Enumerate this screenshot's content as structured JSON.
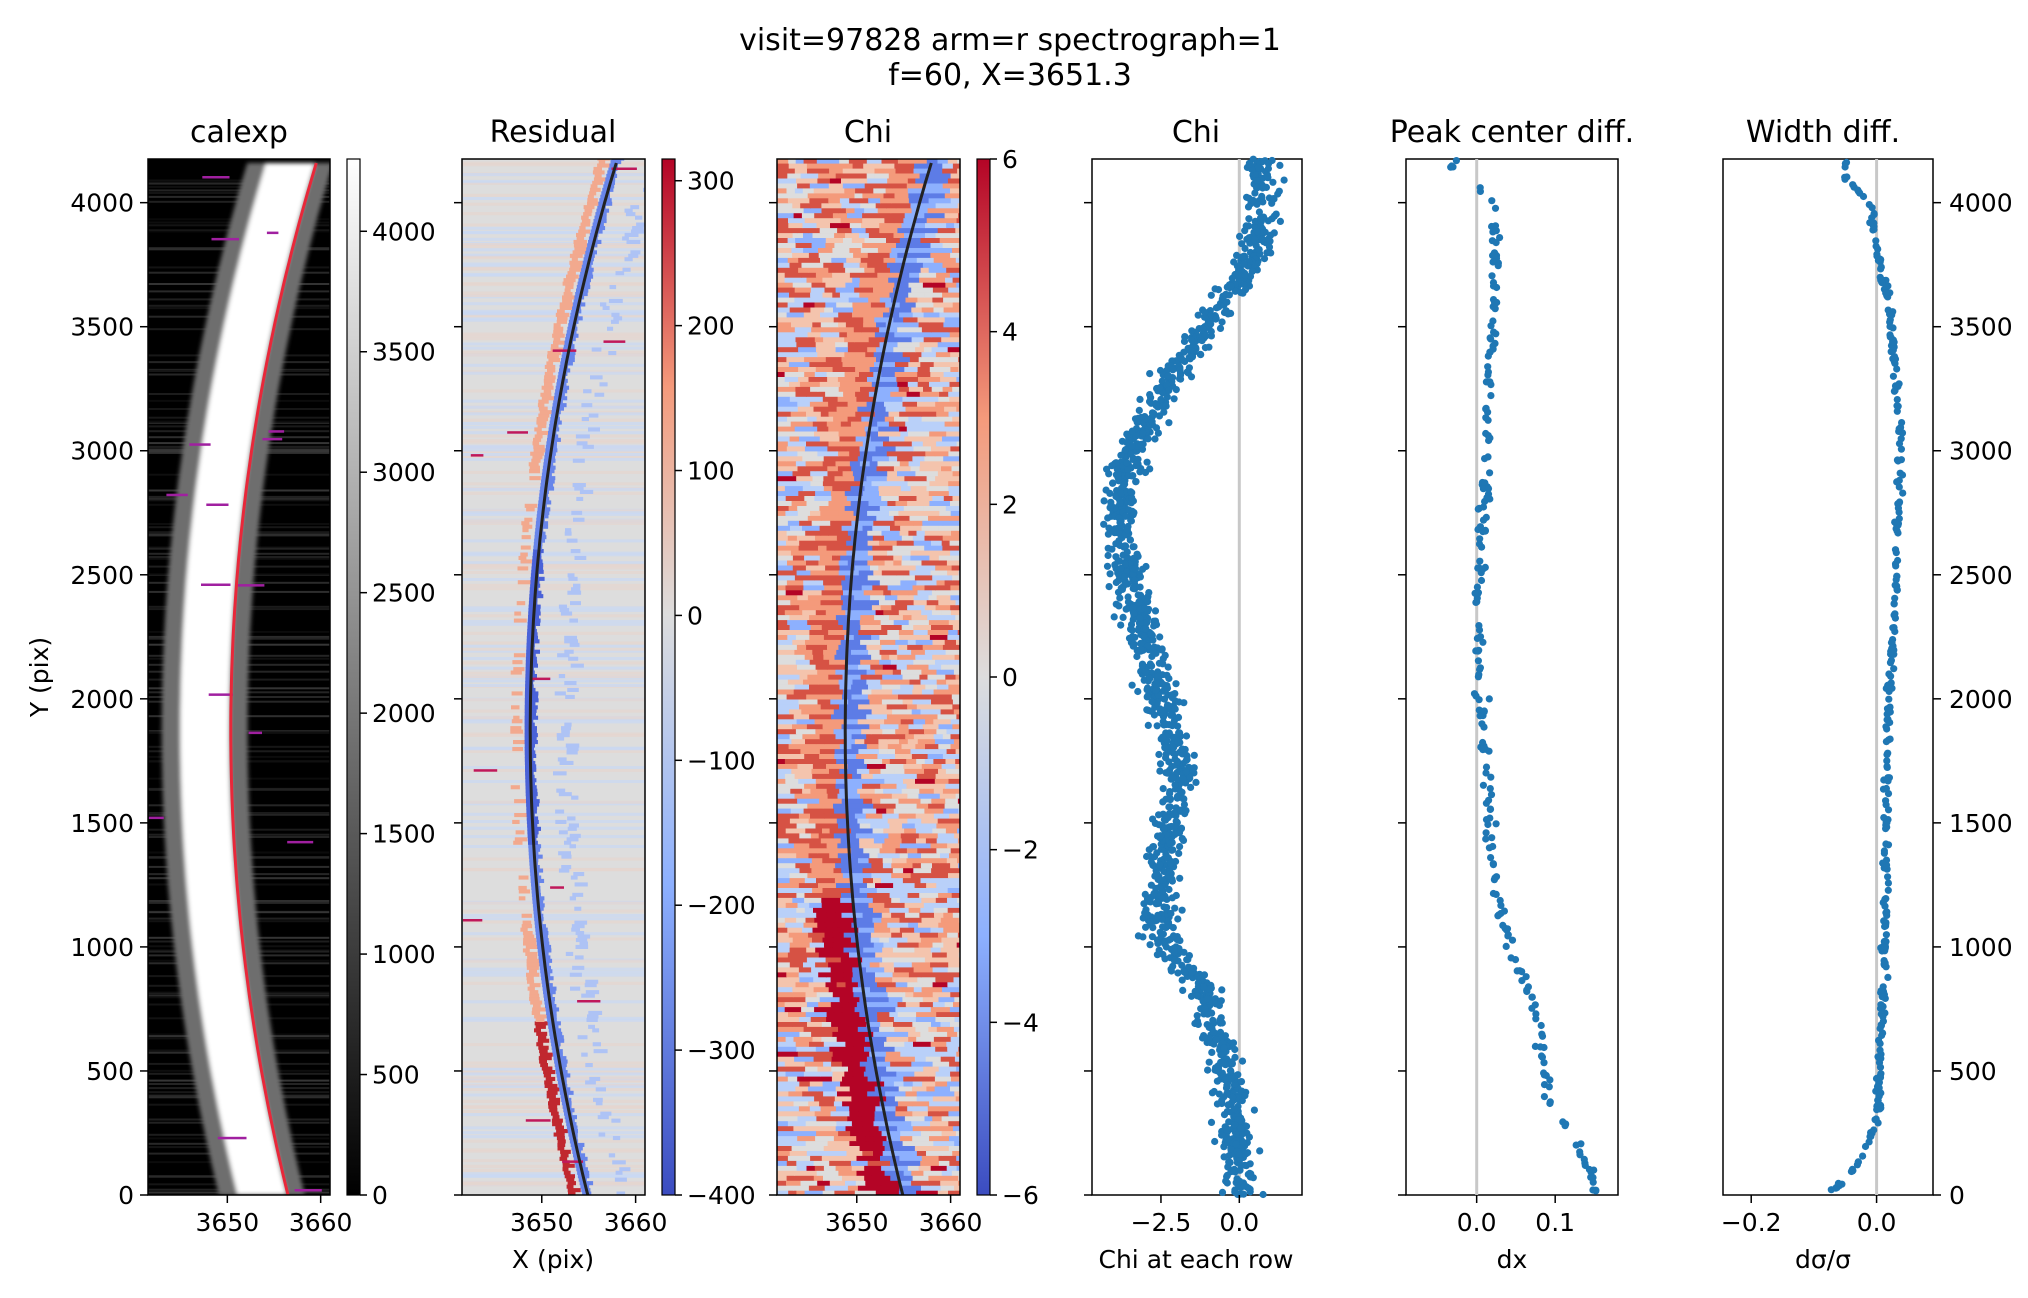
{
  "chart_data": {
    "suptitle_lines": [
      "visit=97828 arm=r spectrograph=1",
      "f=60, X=3651.3"
    ],
    "panels": [
      {
        "type": "heatmap",
        "title": "calexp",
        "xlabel": "",
        "ylabel": "Y (pix)",
        "xlim": [
          3641.5,
          3661
        ],
        "ylim": [
          0,
          4176
        ],
        "xticks": [
          "3650",
          "3660"
        ],
        "yticks": [
          "0",
          "500",
          "1000",
          "1500",
          "2000",
          "2500",
          "3000",
          "3500",
          "4000"
        ],
        "colormap": "gray",
        "colorbar": {
          "vmin": 0,
          "vmax": 4300,
          "ticks": [
            "0",
            "500",
            "1000",
            "1500",
            "2000",
            "2500",
            "3000",
            "3500",
            "4000"
          ]
        },
        "trace_color": "#e8283a"
      },
      {
        "type": "heatmap",
        "title": "Residual",
        "xlabel": "X (pix)",
        "xlim": [
          3641.5,
          3661
        ],
        "ylim": [
          0,
          4176
        ],
        "xticks": [
          "3650",
          "3660"
        ],
        "colormap": "coolwarm",
        "colorbar": {
          "vmin": -400,
          "vmax": 315,
          "ticks": [
            "300",
            "200",
            "100",
            "0",
            "−100",
            "−200",
            "−300",
            "−400"
          ]
        },
        "trace_color": "#222222"
      },
      {
        "type": "heatmap",
        "title": "Chi",
        "xlabel": "",
        "xlim": [
          3641.5,
          3661
        ],
        "ylim": [
          0,
          4176
        ],
        "xticks": [
          "3650",
          "3660"
        ],
        "colormap": "coolwarm",
        "colorbar": {
          "vmin": -6,
          "vmax": 6,
          "ticks": [
            "6",
            "4",
            "2",
            "0",
            "−2",
            "−4",
            "−6"
          ]
        },
        "trace_color": "#222222"
      },
      {
        "type": "scatter",
        "title": "Chi",
        "xlabel": "Chi at each row",
        "xlim": [
          -4.7,
          2.0
        ],
        "ylim": [
          0,
          4176
        ],
        "xticks": [
          "−2.5",
          "0.0"
        ],
        "reference_x": 0.0,
        "profile": [
          [
            0,
            0.1
          ],
          [
            200,
            -0.1
          ],
          [
            400,
            -0.2
          ],
          [
            600,
            -0.6
          ],
          [
            800,
            -1.0
          ],
          [
            1000,
            -2.4
          ],
          [
            1200,
            -2.6
          ],
          [
            1500,
            -2.2
          ],
          [
            1700,
            -1.8
          ],
          [
            2000,
            -2.6
          ],
          [
            2200,
            -2.9
          ],
          [
            2500,
            -3.6
          ],
          [
            2800,
            -3.8
          ],
          [
            3000,
            -3.5
          ],
          [
            3200,
            -2.6
          ],
          [
            3400,
            -1.6
          ],
          [
            3600,
            -0.4
          ],
          [
            3800,
            0.4
          ],
          [
            4000,
            0.9
          ],
          [
            4176,
            0.6
          ]
        ]
      },
      {
        "type": "scatter",
        "title": "Peak center diff.",
        "xlabel": "dx",
        "xlim": [
          -0.09,
          0.18
        ],
        "ylim": [
          0,
          4176
        ],
        "xticks": [
          "0.0",
          "0.1"
        ],
        "reference_x": 0.0,
        "profile": [
          [
            60,
            0.15
          ],
          [
            200,
            0.13
          ],
          [
            400,
            0.09
          ],
          [
            600,
            0.085
          ],
          [
            800,
            0.07
          ],
          [
            1000,
            0.04
          ],
          [
            1200,
            0.025
          ],
          [
            1500,
            0.015
          ],
          [
            1800,
            0.01
          ],
          [
            2000,
            0.005
          ],
          [
            2300,
            0.0
          ],
          [
            2600,
            0.005
          ],
          [
            2800,
            0.01
          ],
          [
            3000,
            0.012
          ],
          [
            3200,
            0.015
          ],
          [
            3500,
            0.02
          ],
          [
            3800,
            0.025
          ],
          [
            4000,
            0.02
          ],
          [
            4150,
            -0.03
          ]
        ]
      },
      {
        "type": "scatter",
        "title": "Width diff.",
        "xlabel": "dσ/σ",
        "xlim": [
          -0.245,
          0.09
        ],
        "ylim": [
          0,
          4176
        ],
        "xticks": [
          "−0.2",
          "0.0"
        ],
        "yticks": [
          "0",
          "500",
          "1000",
          "1500",
          "2000",
          "2500",
          "3000",
          "3500",
          "4000"
        ],
        "reference_x": 0.0,
        "profile": [
          [
            20,
            -0.07
          ],
          [
            120,
            -0.03
          ],
          [
            300,
            0.0
          ],
          [
            500,
            0.005
          ],
          [
            800,
            0.01
          ],
          [
            1200,
            0.015
          ],
          [
            1600,
            0.015
          ],
          [
            2000,
            0.02
          ],
          [
            2400,
            0.03
          ],
          [
            2800,
            0.035
          ],
          [
            3000,
            0.04
          ],
          [
            3300,
            0.03
          ],
          [
            3600,
            0.02
          ],
          [
            3800,
            0.0
          ],
          [
            4000,
            -0.01
          ],
          [
            4100,
            -0.05
          ]
        ]
      }
    ]
  },
  "colors": {
    "marker": "#1f77b4",
    "reference_line": "#c8c8c8",
    "calexp_trace": "#e8283a",
    "heatmap_trace": "#222222"
  }
}
